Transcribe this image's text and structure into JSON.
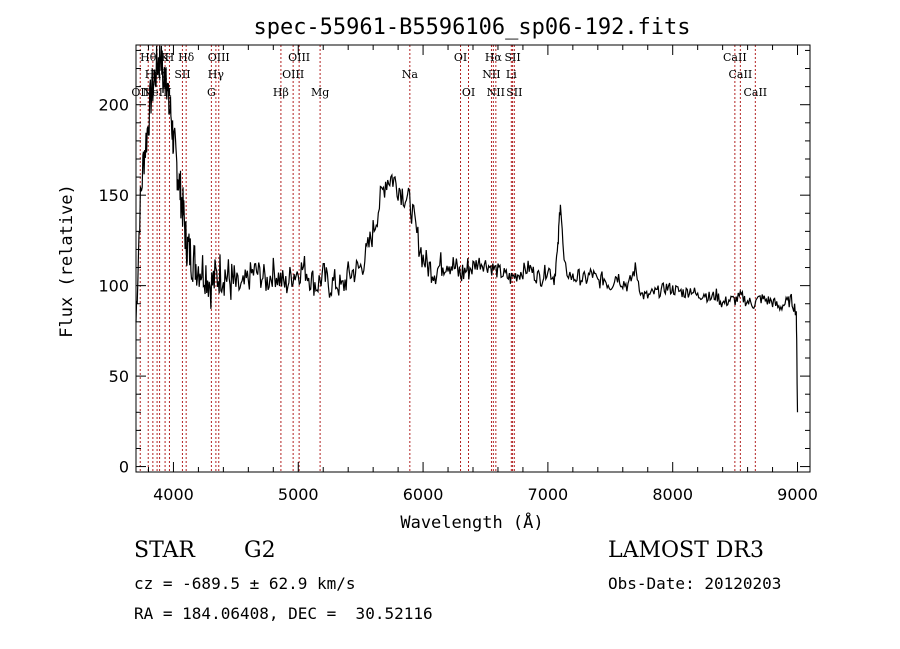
{
  "chart_data": {
    "type": "line",
    "title": "spec-55961-B5596106_sp06-192.fits",
    "xlabel": "Wavelength (Å)",
    "ylabel": "Flux (relative)",
    "xlim": [
      3700,
      9100
    ],
    "ylim": [
      -3,
      233
    ],
    "x_ticks": [
      4000,
      5000,
      6000,
      7000,
      8000,
      9000
    ],
    "y_ticks": [
      0,
      50,
      100,
      150,
      200
    ],
    "grid": false,
    "series": [
      {
        "x": [
          3700,
          3730,
          3760,
          3790,
          3820,
          3850,
          3880,
          3900,
          3920,
          3940,
          3960,
          3980,
          4000,
          4020,
          4040,
          4060,
          4080,
          4100,
          4120,
          4150,
          4180,
          4220,
          4260,
          4300,
          4340,
          4380,
          4420,
          4460,
          4500,
          4550,
          4600,
          4650,
          4700,
          4750,
          4800,
          4850,
          4900,
          4950,
          5000,
          5050,
          5100,
          5150,
          5200,
          5250,
          5300,
          5350,
          5400,
          5450,
          5500,
          5550,
          5600,
          5650,
          5700,
          5750,
          5800,
          5850,
          5900,
          5950,
          6000,
          6050,
          6100,
          6150,
          6200,
          6250,
          6300,
          6350,
          6400,
          6450,
          6500,
          6550,
          6600,
          6650,
          6700,
          6750,
          6800,
          6850,
          6900,
          6950,
          7000,
          7050,
          7080,
          7100,
          7130,
          7200,
          7250,
          7300,
          7350,
          7400,
          7450,
          7500,
          7550,
          7600,
          7650,
          7700,
          7750,
          7800,
          7850,
          7900,
          7950,
          8000,
          8050,
          8100,
          8150,
          8200,
          8250,
          8300,
          8350,
          8400,
          8450,
          8500,
          8550,
          8600,
          8650,
          8700,
          8750,
          8800,
          8850,
          8900,
          8950,
          8990,
          9000
        ],
        "y": [
          80,
          140,
          170,
          185,
          205,
          215,
          225,
          230,
          210,
          222,
          200,
          195,
          180,
          170,
          160,
          150,
          140,
          125,
          120,
          115,
          112,
          110,
          108,
          100,
          104,
          108,
          106,
          102,
          100,
          98,
          104,
          108,
          106,
          102,
          108,
          104,
          100,
          106,
          108,
          110,
          104,
          100,
          106,
          100,
          102,
          98,
          106,
          108,
          110,
          118,
          130,
          145,
          158,
          160,
          155,
          150,
          145,
          128,
          115,
          110,
          108,
          112,
          114,
          110,
          106,
          109,
          111,
          113,
          112,
          110,
          108,
          106,
          104,
          106,
          108,
          110,
          106,
          104,
          110,
          104,
          120,
          148,
          110,
          104,
          105,
          103,
          107,
          102,
          104,
          100,
          106,
          102,
          100,
          110,
          95,
          94,
          96,
          97,
          99,
          98,
          97,
          96,
          98,
          94,
          96,
          93,
          95,
          90,
          92,
          92,
          94,
          91,
          90,
          93,
          92,
          91,
          88,
          90,
          92,
          86,
          30
        ]
      }
    ],
    "lines": [
      {
        "wl": 3734,
        "label": "OII",
        "row": 3
      },
      {
        "wl": 3798,
        "label": "Hθ",
        "row": 1
      },
      {
        "wl": 3835,
        "label": "Hη",
        "row": 2
      },
      {
        "wl": 3869,
        "label": "NeIII",
        "row": 3
      },
      {
        "wl": 3889,
        "label": "Hζ",
        "row": 2
      },
      {
        "wl": 3933,
        "label": "K",
        "row": 1
      },
      {
        "wl": 3968,
        "label": "H",
        "row": 1
      },
      {
        "wl": 4072,
        "label": "SII",
        "row": 2
      },
      {
        "wl": 4102,
        "label": "Hδ",
        "row": 1
      },
      {
        "wl": 4304,
        "label": "G",
        "row": 3
      },
      {
        "wl": 4340,
        "label": "Hγ",
        "row": 2
      },
      {
        "wl": 4363,
        "label": "OIII",
        "row": 1
      },
      {
        "wl": 4861,
        "label": "Hβ",
        "row": 3
      },
      {
        "wl": 4959,
        "label": "OIII",
        "row": 2
      },
      {
        "wl": 5007,
        "label": "OIII",
        "row": 1
      },
      {
        "wl": 5175,
        "label": "Mg",
        "row": 3
      },
      {
        "wl": 5894,
        "label": "Na",
        "row": 2
      },
      {
        "wl": 6300,
        "label": "OI",
        "row": 1
      },
      {
        "wl": 6364,
        "label": "OI",
        "row": 3
      },
      {
        "wl": 6548,
        "label": "NII",
        "row": 2
      },
      {
        "wl": 6563,
        "label": "Hα",
        "row": 1
      },
      {
        "wl": 6583,
        "label": "NII",
        "row": 3
      },
      {
        "wl": 6707,
        "label": "Li",
        "row": 2
      },
      {
        "wl": 6717,
        "label": "SII",
        "row": 1
      },
      {
        "wl": 6731,
        "label": "SII",
        "row": 3
      },
      {
        "wl": 8498,
        "label": "CaII",
        "row": 1
      },
      {
        "wl": 8542,
        "label": "CaII",
        "row": 2
      },
      {
        "wl": 8662,
        "label": "CaII",
        "row": 3
      }
    ]
  },
  "info": {
    "obj_class": "STAR",
    "subclass": "G2",
    "survey": "LAMOST DR3",
    "cz": "cz = -689.5 ± 62.9 km/s",
    "obs_date": "Obs-Date: 20120203",
    "coords": "RA = 184.06408, DEC =  30.52116"
  },
  "colors": {
    "spectrum": "#000000",
    "line_marker": "#b22222",
    "axes": "#000000"
  }
}
